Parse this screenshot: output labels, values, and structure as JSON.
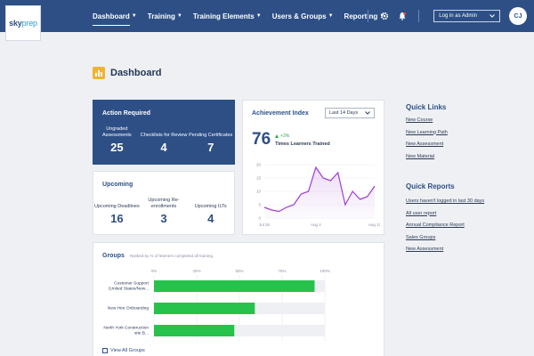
{
  "brand": {
    "name_a": "sky",
    "name_b": "prep"
  },
  "nav": {
    "items": [
      {
        "label": "Dashboard",
        "active": true
      },
      {
        "label": "Training"
      },
      {
        "label": "Training Elements"
      },
      {
        "label": "Users & Groups"
      },
      {
        "label": "Reporting"
      }
    ],
    "login_label": "Log in as Admin",
    "avatar_initials": "CJ",
    "icons": [
      "gear-icon",
      "bell-icon"
    ],
    "notification_color": "#e0453a"
  },
  "page": {
    "title": "Dashboard"
  },
  "action_required": {
    "title": "Action Required",
    "metrics": [
      {
        "label": "Ungraded Assessments",
        "value": "25"
      },
      {
        "label": "Checklists for Review",
        "value": "4"
      },
      {
        "label": "Pending Certificates",
        "value": "7"
      }
    ]
  },
  "upcoming": {
    "title": "Upcoming",
    "metrics": [
      {
        "label": "Upcoming Deadlines",
        "value": "16"
      },
      {
        "label": "Upcoming Re-enrollments",
        "value": "3"
      },
      {
        "label": "Upcoming ILTs",
        "value": "4"
      }
    ]
  },
  "achievement": {
    "title": "Achievement Index",
    "range": "Last 14 Days",
    "value": "76",
    "change": "+3%",
    "description": "Times Learners Trained"
  },
  "groups": {
    "title": "Groups",
    "subtitle": "Ranked by % of learners completed all training",
    "view_all": "View All Groups"
  },
  "quick_links": {
    "title": "Quick Links",
    "items": [
      "New Course",
      "New Learning Path",
      "New Assessment",
      "New Material"
    ]
  },
  "quick_reports": {
    "title": "Quick Reports",
    "items": [
      "Users haven't logged in last 30 days",
      "All user report",
      "Annual Compliance Report",
      "Sales Groups",
      "New Assessment"
    ]
  },
  "chart_data": [
    {
      "type": "area",
      "x": [
        "Jul 26",
        "",
        "",
        "",
        "",
        "",
        "",
        "Aug 4",
        "",
        "",
        "",
        "",
        "",
        "",
        "",
        "Aug 10"
      ],
      "x_ticks": [
        "Jul 26",
        "Aug 4",
        "Aug 10"
      ],
      "y": [
        4,
        3,
        2.5,
        4,
        5,
        9,
        10,
        19,
        15,
        14,
        17,
        5,
        10,
        7,
        8,
        12
      ],
      "ylim": [
        0,
        20
      ],
      "y_ticks": [
        0,
        5,
        10,
        15,
        20
      ],
      "color": "#9b3fd1"
    },
    {
      "type": "bar",
      "orientation": "horizontal",
      "categories": [
        "Customer Support (United States/New...",
        "New Hire Onboarding",
        "North York Construction site B..."
      ],
      "values": [
        94,
        59,
        47
      ],
      "xlim": [
        0,
        100
      ],
      "x_ticks": [
        "0%",
        "25%",
        "50%",
        "75%",
        "100%"
      ],
      "color": "#27c24c",
      "track_color": "#eef0f3"
    }
  ]
}
